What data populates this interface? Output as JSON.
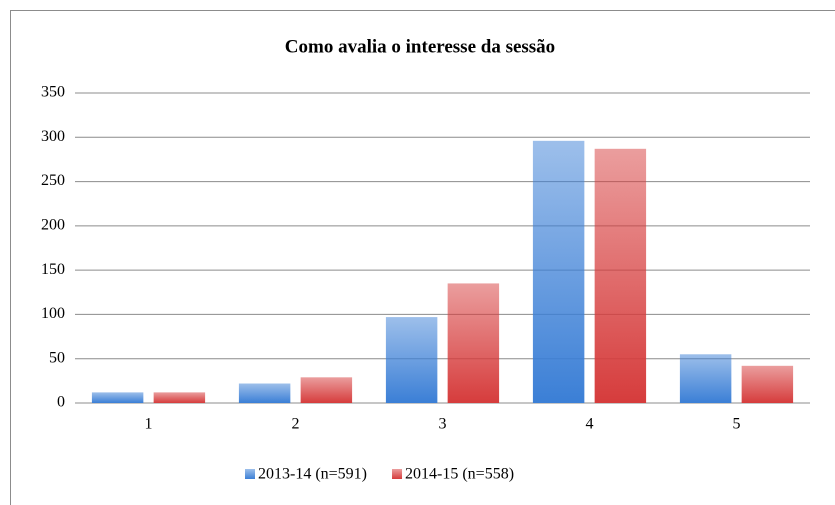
{
  "chart_data": {
    "type": "bar",
    "title": "Como avalia o interesse da sessão",
    "categories": [
      "1",
      "2",
      "3",
      "4",
      "5"
    ],
    "series": [
      {
        "name": "2013-14 (n=591)",
        "color": "#3b7fd6",
        "values": [
          12,
          22,
          97,
          296,
          55
        ]
      },
      {
        "name": "2014-15 (n=558)",
        "color": "#d63c3c",
        "values": [
          12,
          29,
          135,
          287,
          42
        ]
      }
    ],
    "ylim": [
      0,
      350
    ],
    "yticks": [
      0,
      50,
      100,
      150,
      200,
      250,
      300,
      350
    ],
    "grid": true
  }
}
